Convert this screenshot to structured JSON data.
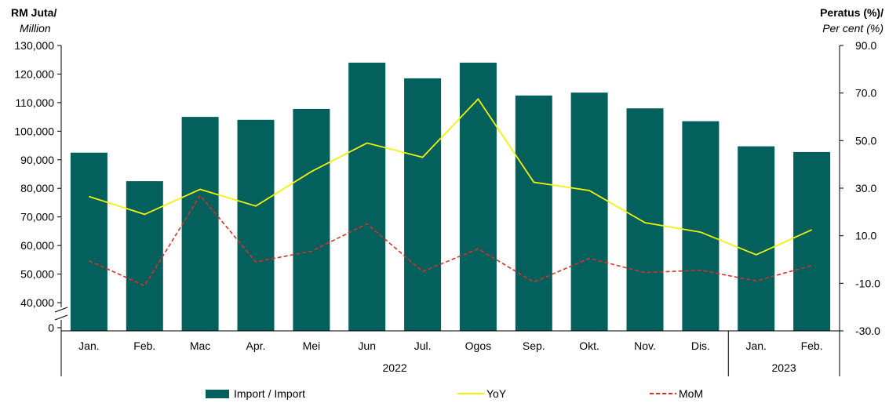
{
  "chart_data": {
    "type": "bar",
    "left_unit": {
      "line1": "RM Juta/",
      "line2": "Million"
    },
    "right_unit": {
      "line1": "Peratus (%)/",
      "line2": "Per cent (%)"
    },
    "categories": [
      "Jan.",
      "Feb.",
      "Mac",
      "Apr.",
      "Mei",
      "Jun",
      "Jul.",
      "Ogos",
      "Sep.",
      "Okt.",
      "Nov.",
      "Dis.",
      "Jan.",
      "Feb."
    ],
    "year_groups": [
      {
        "label": "2022",
        "count": 12
      },
      {
        "label": "2023",
        "count": 2
      }
    ],
    "series": [
      {
        "name": "Import / Import",
        "type": "bar",
        "axis": "left",
        "color": "#03605d",
        "values": [
          92500,
          82500,
          105000,
          104000,
          107800,
          124000,
          118500,
          124000,
          112500,
          113500,
          108000,
          103500,
          94700,
          92700
        ]
      },
      {
        "name": "YoY",
        "type": "line",
        "axis": "right",
        "color": "#f2f20a",
        "style": "solid",
        "values": [
          26.5,
          19.0,
          29.5,
          22.5,
          37.0,
          49.0,
          43.0,
          67.5,
          32.5,
          29.0,
          15.5,
          11.5,
          2.0,
          12.5
        ]
      },
      {
        "name": "MoM",
        "type": "line",
        "axis": "right",
        "color": "#d9302c",
        "style": "dashed",
        "values": [
          -0.5,
          -11.0,
          27.0,
          -1.0,
          3.5,
          15.0,
          -5.0,
          4.5,
          -9.5,
          0.5,
          -5.5,
          -4.5,
          -9.0,
          -2.5
        ]
      }
    ],
    "left_axis": {
      "ticks": [
        "130,000",
        "120,000",
        "110,000",
        "100,000",
        "90,000",
        "80,000",
        "70,000",
        "60,000",
        "50,000",
        "40,000",
        "0"
      ],
      "range": [
        40000,
        130000
      ],
      "broken": true
    },
    "right_axis": {
      "ticks": [
        "90.0",
        "70.0",
        "50.0",
        "30.0",
        "10.0",
        "-10.0",
        "-30.0"
      ],
      "range": [
        -30,
        90
      ]
    },
    "grid": false,
    "legend_position": "bottom"
  }
}
